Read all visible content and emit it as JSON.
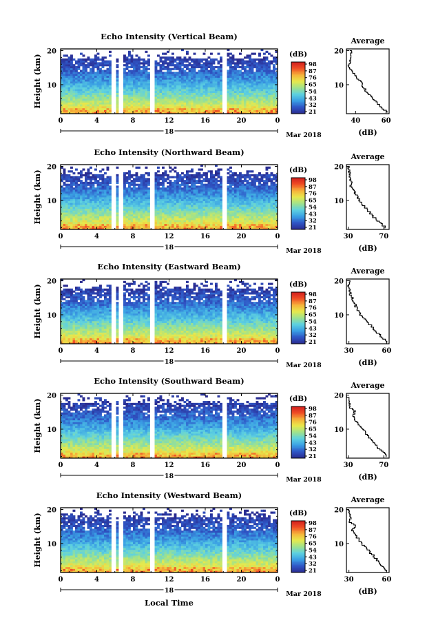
{
  "figure": {
    "date_label": "Mar 2018",
    "day_label": "18",
    "xlabel_bottom": "Local Time",
    "colorbar_unit": "(dB)",
    "avg_title": "Average",
    "avg_xlabel": "(dB)"
  },
  "chart_data": [
    {
      "type": "heatmap",
      "title": "Echo Intensity (Vertical Beam)",
      "ylabel": "Height (km)",
      "x_ticks": [
        "0",
        "4",
        "8",
        "12",
        "16",
        "20",
        "0"
      ],
      "y_ticks": [
        "10",
        "20"
      ],
      "xlim": [
        0,
        24
      ],
      "ylim": [
        1.5,
        20.5
      ],
      "colorbar_ticks": [
        "98",
        "87",
        "76",
        "65",
        "54",
        "43",
        "32",
        "21"
      ],
      "colorbar_range": [
        21,
        98
      ],
      "data_gaps_hours": [
        [
          5.6,
          6.0
        ],
        [
          6.5,
          6.8
        ],
        [
          10.0,
          10.3
        ],
        [
          18.0,
          18.5
        ]
      ],
      "profile": {
        "xlabel": "(dB)",
        "x_ticks": [
          "40",
          "60"
        ],
        "xlim": [
          34,
          62
        ],
        "ylim": [
          1.5,
          20.5
        ],
        "height_km": [
          20,
          18,
          16,
          15,
          14,
          12,
          10,
          8,
          6,
          4,
          2
        ],
        "values_db": [
          37,
          37,
          36,
          35,
          37,
          41,
          44,
          47,
          51,
          55,
          60
        ]
      }
    },
    {
      "type": "heatmap",
      "title": "Echo Intensity (Northward Beam)",
      "ylabel": "Height (km)",
      "x_ticks": [
        "0",
        "4",
        "8",
        "12",
        "16",
        "20",
        "0"
      ],
      "y_ticks": [
        "10",
        "20"
      ],
      "xlim": [
        0,
        24
      ],
      "ylim": [
        1.5,
        20.5
      ],
      "colorbar_ticks": [
        "98",
        "87",
        "76",
        "65",
        "54",
        "43",
        "32",
        "21"
      ],
      "colorbar_range": [
        21,
        98
      ],
      "data_gaps_hours": [
        [
          5.6,
          6.0
        ],
        [
          6.5,
          6.8
        ],
        [
          10.0,
          10.3
        ],
        [
          18.0,
          18.5
        ]
      ],
      "profile": {
        "xlabel": "(dB)",
        "x_ticks": [
          "30",
          "70"
        ],
        "xlim": [
          28,
          76
        ],
        "ylim": [
          1.5,
          20.5
        ],
        "height_km": [
          20,
          18,
          16,
          15,
          14,
          12,
          10,
          8,
          6,
          4,
          2
        ],
        "values_db": [
          30,
          31,
          32,
          35,
          33,
          38,
          42,
          48,
          55,
          62,
          72
        ]
      }
    },
    {
      "type": "heatmap",
      "title": "Echo Intensity (Eastward Beam)",
      "ylabel": "Height (km)",
      "x_ticks": [
        "0",
        "4",
        "8",
        "12",
        "16",
        "20",
        "0"
      ],
      "y_ticks": [
        "10",
        "20"
      ],
      "xlim": [
        0,
        24
      ],
      "ylim": [
        1.5,
        20.5
      ],
      "colorbar_ticks": [
        "98",
        "87",
        "76",
        "65",
        "54",
        "43",
        "32",
        "21"
      ],
      "colorbar_range": [
        21,
        98
      ],
      "data_gaps_hours": [
        [
          5.6,
          6.0
        ],
        [
          6.5,
          6.8
        ],
        [
          10.0,
          10.3
        ],
        [
          18.0,
          18.5
        ]
      ],
      "profile": {
        "xlabel": "(dB)",
        "x_ticks": [
          "30",
          "60"
        ],
        "xlim": [
          28,
          62
        ],
        "ylim": [
          1.5,
          20.5
        ],
        "height_km": [
          20,
          18,
          16,
          15,
          14,
          12,
          10,
          8,
          6,
          4,
          2
        ],
        "values_db": [
          30,
          30,
          31,
          33,
          33,
          36,
          39,
          44,
          49,
          54,
          60
        ]
      }
    },
    {
      "type": "heatmap",
      "title": "Echo Intensity (Southward Beam)",
      "ylabel": "Height (km)",
      "x_ticks": [
        "0",
        "4",
        "8",
        "12",
        "16",
        "20",
        "0"
      ],
      "y_ticks": [
        "10",
        "20"
      ],
      "xlim": [
        0,
        24
      ],
      "ylim": [
        1.5,
        20.5
      ],
      "colorbar_ticks": [
        "98",
        "87",
        "76",
        "65",
        "54",
        "43",
        "32",
        "21"
      ],
      "colorbar_range": [
        21,
        98
      ],
      "data_gaps_hours": [
        [
          5.6,
          6.0
        ],
        [
          6.5,
          6.8
        ],
        [
          10.0,
          10.3
        ],
        [
          18.0,
          18.5
        ]
      ],
      "profile": {
        "xlabel": "(dB)",
        "x_ticks": [
          "30",
          "70"
        ],
        "xlim": [
          28,
          76
        ],
        "ylim": [
          1.5,
          20.5
        ],
        "height_km": [
          20,
          18,
          16,
          15,
          14,
          12,
          10,
          8,
          6,
          4,
          2
        ],
        "values_db": [
          29,
          30,
          33,
          38,
          35,
          39,
          45,
          52,
          58,
          65,
          74
        ]
      }
    },
    {
      "type": "heatmap",
      "title": "Echo Intensity (Westward Beam)",
      "ylabel": "Height (km)",
      "x_ticks": [
        "0",
        "4",
        "8",
        "12",
        "16",
        "20",
        "0"
      ],
      "y_ticks": [
        "10",
        "20"
      ],
      "xlim": [
        0,
        24
      ],
      "ylim": [
        1.5,
        20.5
      ],
      "colorbar_ticks": [
        "98",
        "87",
        "76",
        "65",
        "54",
        "43",
        "32",
        "21"
      ],
      "colorbar_range": [
        21,
        98
      ],
      "data_gaps_hours": [
        [
          5.6,
          6.0
        ],
        [
          6.5,
          6.8
        ],
        [
          10.0,
          10.3
        ],
        [
          18.0,
          18.5
        ]
      ],
      "profile": {
        "xlabel": "(dB)",
        "x_ticks": [
          "30",
          "60"
        ],
        "xlim": [
          28,
          62
        ],
        "ylim": [
          1.5,
          20.5
        ],
        "height_km": [
          20,
          18,
          16,
          15,
          14,
          12,
          10,
          8,
          6,
          4,
          2
        ],
        "values_db": [
          30,
          31,
          31,
          36,
          32,
          36,
          40,
          45,
          50,
          55,
          60
        ]
      }
    }
  ],
  "colors": {
    "colormap": [
      "#2a2b8f",
      "#2f56c6",
      "#3aa0e4",
      "#5ed1e0",
      "#9fe28c",
      "#e7e94c",
      "#f6b13a",
      "#ef4d25",
      "#d11e1e"
    ]
  }
}
